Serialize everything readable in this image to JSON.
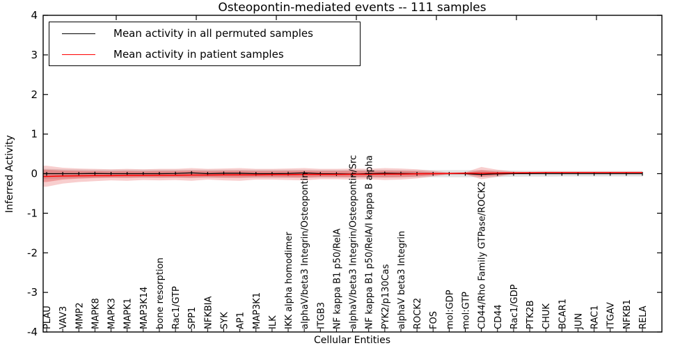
{
  "figure": {
    "title": "Osteopontin-mediated events -- 111 samples",
    "xlabel": "Cellular Entities",
    "ylabel": "Inferred Activity"
  },
  "legend": {
    "items": [
      {
        "label": "Mean activity in all permuted samples",
        "color": "#000000"
      },
      {
        "label": "Mean activity in patient samples",
        "color": "#ff0000"
      }
    ]
  },
  "chart_data": {
    "type": "line",
    "title": "Osteopontin-mediated events -- 111 samples",
    "xlabel": "Cellular Entities",
    "ylabel": "Inferred Activity",
    "ylim": [
      -4,
      4
    ],
    "y_ticks": [
      4,
      3,
      2,
      1,
      0,
      -1,
      -2,
      -3,
      -4
    ],
    "grid": false,
    "legend_position": "upper left",
    "categories": [
      "PLAU",
      "VAV3",
      "MMP2",
      "MAPK8",
      "MAPK3",
      "MAPK1",
      "MAP3K14",
      "bone resorption",
      "Rac1/GTP",
      "SPP1",
      "NFKBIA",
      "SYK",
      "AP1",
      "MAP3K1",
      "ILK",
      "IKK alpha homodimer",
      "alphaV/beta3 Integrin/Osteopontin",
      "ITGB3",
      "NF kappa B1 p50/RelA",
      "alphaV/beta3 Integrin/Osteopontin/Src",
      "NF kappa B1 p50/RelA/I kappa B alpha",
      "PYK2/p130Cas",
      "alphaV beta3 Integrin",
      "ROCK2",
      "FOS",
      "mol:GDP",
      "mol:GTP",
      "CD44/Rho Family GTPase/ROCK2",
      "CD44",
      "Rac1/GDP",
      "PTK2B",
      "CHUK",
      "BCAR1",
      "JUN",
      "RAC1",
      "ITGAV",
      "NFKB1",
      "RELA"
    ],
    "series": [
      {
        "name": "Mean activity in all permuted samples",
        "color": "#000000",
        "marker": "vertical-tick",
        "values": [
          0,
          0,
          0,
          0.005,
          0,
          0,
          0,
          0,
          0.005,
          0.02,
          0,
          0.01,
          0.01,
          0,
          0,
          0.005,
          0.02,
          0,
          -0.005,
          -0.01,
          0,
          0.01,
          0.005,
          0,
          0,
          0,
          0,
          -0.02,
          -0.005,
          0,
          0,
          0,
          0,
          0,
          0,
          0,
          0,
          0
        ]
      },
      {
        "name": "Mean activity in patient samples",
        "color": "#ff0000",
        "marker": "none",
        "values": [
          -0.07,
          -0.06,
          -0.055,
          -0.05,
          -0.05,
          -0.045,
          -0.045,
          -0.04,
          -0.04,
          -0.035,
          -0.035,
          -0.03,
          -0.03,
          -0.03,
          -0.025,
          -0.025,
          -0.02,
          -0.02,
          -0.02,
          -0.015,
          -0.015,
          -0.01,
          -0.01,
          -0.005,
          0,
          0.005,
          0.01,
          0.01,
          0.015,
          0.02,
          0.025,
          0.03,
          0.03,
          0.03,
          0.03,
          0.03,
          0.03,
          0.03
        ]
      }
    ],
    "bands": [
      {
        "name": "permuted-samples-range",
        "color": "#cccccc",
        "opacity": 0.55,
        "top": [
          0.12,
          0.11,
          0.105,
          0.1,
          0.1,
          0.1,
          0.1,
          0.1,
          0.1,
          0.1,
          0.1,
          0.1,
          0.1,
          0.1,
          0.1,
          0.1,
          0.1,
          0.095,
          0.095,
          0.095,
          0.095,
          0.095,
          0.09,
          0.09,
          0.09,
          0.09,
          0.09,
          0.085,
          0.085,
          0.08,
          0.075,
          0.075,
          0.07,
          0.07,
          0.07,
          0.07,
          0.07,
          0.07
        ],
        "bottom": [
          -0.13,
          -0.12,
          -0.11,
          -0.105,
          -0.1,
          -0.1,
          -0.1,
          -0.1,
          -0.1,
          -0.1,
          -0.1,
          -0.1,
          -0.1,
          -0.1,
          -0.1,
          -0.1,
          -0.1,
          -0.095,
          -0.095,
          -0.095,
          -0.095,
          -0.095,
          -0.09,
          -0.09,
          -0.09,
          -0.09,
          -0.09,
          -0.085,
          -0.085,
          -0.08,
          -0.075,
          -0.075,
          -0.07,
          -0.07,
          -0.07,
          -0.07,
          -0.07,
          -0.07
        ]
      },
      {
        "name": "patient-samples-range-outer",
        "color": "#dd2222",
        "opacity": 0.22,
        "top": [
          0.2,
          0.15,
          0.13,
          0.12,
          0.11,
          0.12,
          0.11,
          0.12,
          0.12,
          0.14,
          0.12,
          0.13,
          0.14,
          0.12,
          0.12,
          0.13,
          0.14,
          0.12,
          0.12,
          0.13,
          0.12,
          0.14,
          0.13,
          0.11,
          0.07,
          0.03,
          0.035,
          0.17,
          0.1,
          0.05,
          0.04,
          0.04,
          0.04,
          0.04,
          0.04,
          0.04,
          0.04,
          0.04
        ],
        "bottom": [
          -0.33,
          -0.25,
          -0.21,
          -0.19,
          -0.17,
          -0.18,
          -0.16,
          -0.17,
          -0.16,
          -0.18,
          -0.15,
          -0.17,
          -0.18,
          -0.15,
          -0.15,
          -0.16,
          -0.17,
          -0.14,
          -0.14,
          -0.15,
          -0.14,
          -0.16,
          -0.15,
          -0.12,
          -0.07,
          -0.02,
          -0.02,
          -0.14,
          -0.08,
          -0.01,
          0.01,
          0.015,
          0.015,
          0.015,
          0.015,
          0.015,
          0.015,
          0.015
        ]
      },
      {
        "name": "patient-samples-range-inner",
        "color": "#dd2222",
        "opacity": 0.3,
        "top": [
          0.1,
          0.08,
          0.07,
          0.065,
          0.06,
          0.065,
          0.06,
          0.065,
          0.065,
          0.075,
          0.065,
          0.07,
          0.075,
          0.065,
          0.065,
          0.07,
          0.075,
          0.065,
          0.065,
          0.07,
          0.065,
          0.075,
          0.07,
          0.06,
          0.035,
          0.015,
          0.02,
          0.09,
          0.05,
          0.035,
          0.038,
          0.038,
          0.038,
          0.038,
          0.038,
          0.038,
          0.038,
          0.038
        ],
        "bottom": [
          -0.21,
          -0.15,
          -0.125,
          -0.11,
          -0.1,
          -0.105,
          -0.095,
          -0.1,
          -0.095,
          -0.105,
          -0.09,
          -0.1,
          -0.105,
          -0.09,
          -0.09,
          -0.095,
          -0.1,
          -0.085,
          -0.085,
          -0.09,
          -0.085,
          -0.095,
          -0.09,
          -0.07,
          -0.04,
          -0.01,
          -0.01,
          -0.08,
          -0.045,
          0.005,
          0.018,
          0.02,
          0.02,
          0.02,
          0.02,
          0.02,
          0.02,
          0.02
        ]
      }
    ]
  }
}
